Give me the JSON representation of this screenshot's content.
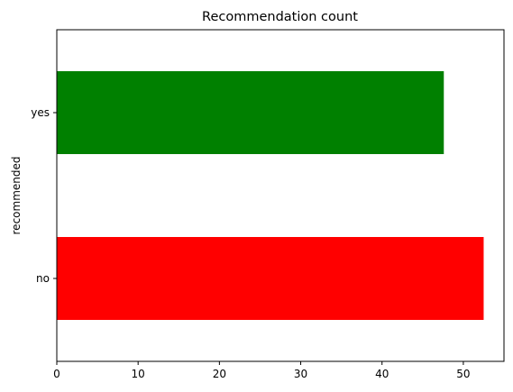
{
  "chart_data": {
    "type": "bar",
    "orientation": "horizontal",
    "title": "Recommendation count",
    "xlabel": "",
    "ylabel": "recommended",
    "categories": [
      "no",
      "yes"
    ],
    "values": [
      52.5,
      47.6
    ],
    "colors": [
      "#ff0000",
      "#008000"
    ],
    "xlim": [
      0,
      55
    ],
    "xticks": [
      0,
      10,
      20,
      30,
      40,
      50
    ],
    "grid": false,
    "legend": "none"
  }
}
